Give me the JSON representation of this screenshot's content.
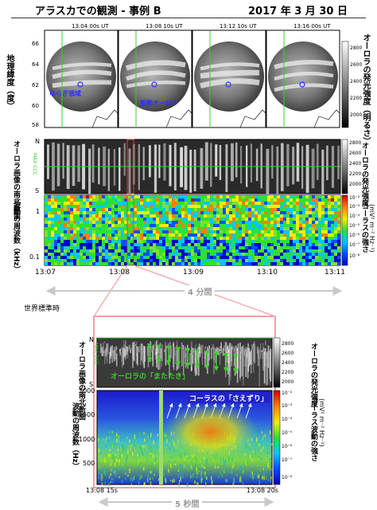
{
  "header": {
    "title": "アラスカでの観測 - 事例 B",
    "date": "2017 年 3 月 30 日"
  },
  "colors": {
    "accent_green": "#39d12a",
    "zoom_red": "#f0a0a0",
    "arrow_gray": "#c9c9c9",
    "annotation_blue": "#2e2eff"
  },
  "sky_images": {
    "times": [
      "13:04 00s UT",
      "13:08 10s UT",
      "13:12 10s UT",
      "13:16 00s UT"
    ],
    "ylabel": "地理緯度（度）",
    "yticks": [
      "66",
      "64",
      "62",
      "60",
      "58"
    ],
    "ann1": "ゆらぎ領域",
    "ann2": "脈動オーロラ",
    "cbar_ticks": [
      "2800",
      "2600",
      "2400",
      "2200",
      "2000"
    ],
    "cbar_label": "オーロラの発光強度（明るさ）"
  },
  "keogram_top": {
    "ylabel": "オーロラ画像の南北断面",
    "n": "N",
    "s": "S",
    "max_ccc": "MAX CCC",
    "cbar_ticks": [
      "2800",
      "2600",
      "2400",
      "2200",
      "2000"
    ],
    "cbar_label": "オーロラの発光強度"
  },
  "spectrogram_top": {
    "ylabel": "波動の周波数（kHz）",
    "yticks": [
      "1",
      "0.1"
    ],
    "cbar_ticks": [
      "10⁻²",
      "10⁻³",
      "10⁻⁴",
      "10⁻⁵",
      "10⁻⁶",
      "10⁻⁷",
      "10⁻⁸"
    ],
    "cbar_label": "コーラスの強さ",
    "cbar_unit": "(mV² m⁻² Hz⁻¹)",
    "xticks": [
      "13:07",
      "13:08",
      "13:09",
      "13:10",
      "13:11"
    ],
    "span": "4 分間"
  },
  "xaxis_label": "世界標準時",
  "keogram_zoom": {
    "ylabel": "オーロラ画像の南北断面",
    "n": "N",
    "s": "S",
    "max_ccc": "MAX CCC",
    "annotation": "オーロラの「またたき」",
    "cbar_ticks": [
      "2800",
      "2600",
      "2400",
      "2200",
      "2000"
    ],
    "cbar_label": "オーロラの発光強度"
  },
  "spectrogram_zoom": {
    "ylabel": "波動の周波数（Hz）",
    "yticks": [
      "2000",
      "1500",
      "1000",
      "500"
    ],
    "annotation": "コーラスの「さえずり」",
    "cbar_ticks": [
      "10⁻²",
      "10⁻³",
      "10⁻⁴",
      "10⁻⁵",
      "10⁻⁶",
      "10⁻⁷",
      "10⁻⁸"
    ],
    "cbar_label": "コーラス波動の強さ",
    "cbar_unit": "(mV² m⁻² Hz⁻¹)",
    "xticks": [
      "13:08 15s",
      "13:08 20s"
    ],
    "span": "5 秒間"
  },
  "chart_data": [
    {
      "type": "heatmap",
      "title": "",
      "x": [
        "13:04 00s UT",
        "13:08 10s UT",
        "13:12 10s UT",
        "13:16 00s UT"
      ],
      "ylabel": "地理緯度（度）",
      "ylim": [
        58,
        66
      ],
      "colorbar": {
        "label": "オーロラの発光強度（明るさ）",
        "range": [
          2000,
          2800
        ]
      }
    },
    {
      "type": "heatmap",
      "ylabel": "オーロラ画像の南北断面",
      "colorbar": {
        "label": "オーロラの発光強度",
        "range": [
          2000,
          2800
        ]
      },
      "xlim": [
        "13:07",
        "13:11"
      ]
    },
    {
      "type": "heatmap",
      "ylabel": "波動の周波数（kHz）",
      "yscale": "log",
      "xticks": [
        "13:07",
        "13:08",
        "13:09",
        "13:10",
        "13:11"
      ],
      "colorbar": {
        "label": "コーラスの強さ",
        "unit": "(mV² m⁻² Hz⁻¹)",
        "scale": "log",
        "range": [
          "10⁻⁸",
          "10⁻²"
        ]
      }
    },
    {
      "type": "heatmap",
      "ylabel": "オーロラ画像の南北断面",
      "colorbar": {
        "label": "オーロラの発光強度",
        "range": [
          2000,
          2800
        ]
      },
      "xlim": [
        "13:08 15s",
        "13:08 20s"
      ]
    },
    {
      "type": "heatmap",
      "ylabel": "波動の周波数（Hz）",
      "ylim": [
        300,
        2000
      ],
      "yticks": [
        2000,
        1500,
        1000,
        500
      ],
      "xticks": [
        "13:08 15s",
        "13:08 20s"
      ],
      "colorbar": {
        "label": "コーラス波動の強さ",
        "unit": "(mV² m⁻² Hz⁻¹)",
        "scale": "log",
        "range": [
          "10⁻⁸",
          "10⁻²"
        ]
      }
    }
  ]
}
